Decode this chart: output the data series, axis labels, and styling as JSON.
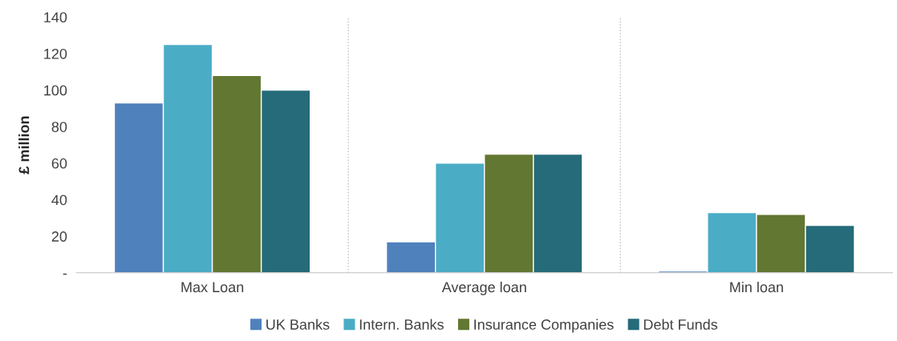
{
  "chart_data": {
    "type": "bar",
    "ylabel": "£ million",
    "categories": [
      "Max Loan",
      "Average loan",
      "Min loan"
    ],
    "series": [
      {
        "name": "UK Banks",
        "color": "#4f81bd",
        "values": [
          93,
          17,
          1
        ]
      },
      {
        "name": "Intern. Banks",
        "color": "#4bacc6",
        "values": [
          125,
          60,
          33
        ]
      },
      {
        "name": "Insurance Companies",
        "color": "#627731",
        "values": [
          108,
          65,
          32
        ]
      },
      {
        "name": "Debt Funds",
        "color": "#256b7a",
        "values": [
          100,
          65,
          26
        ]
      }
    ],
    "ylim": [
      0,
      140
    ],
    "yticks": [
      {
        "value": 0,
        "label": "-"
      },
      20,
      40,
      60,
      80,
      100,
      120,
      140
    ],
    "grid": "x",
    "legend": "bottom"
  }
}
